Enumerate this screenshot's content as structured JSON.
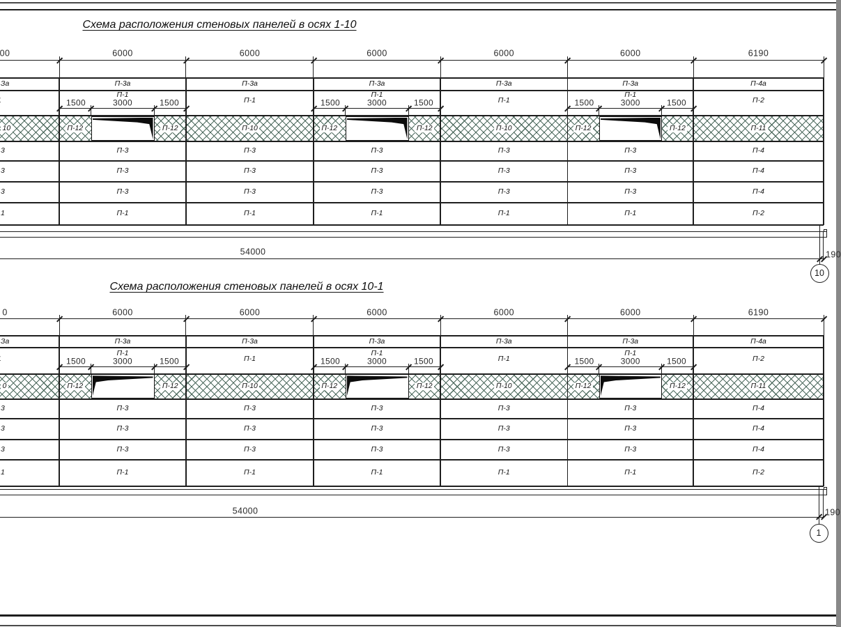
{
  "sheet": {
    "background": "#ffffff",
    "line_color": "#1e1e1e",
    "hatch_color": "#4d6a5e"
  },
  "diagrams": [
    {
      "title": "Схема расположения стеновых панелей в осях 1-10",
      "axis_label": "10",
      "top_dims": [
        "00",
        "6000",
        "6000",
        "6000",
        "6000",
        "6000",
        "6190"
      ],
      "window_dims": {
        "side": "1500",
        "mid": "3000",
        "lintel": "П-1"
      },
      "window_flag": "right",
      "rows": [
        {
          "type": "plain",
          "cells": [
            "За",
            "П-3а",
            "П-3а",
            "П-3а",
            "П-3а",
            "П-3а",
            "П-4а"
          ]
        },
        {
          "type": "lintel",
          "cells": [
            "1",
            "П-1",
            "П-1",
            "П-1",
            "П-1",
            "П-1",
            "П-2"
          ]
        },
        {
          "type": "hatch",
          "cells": [
            "10",
            "П-12",
            "П-10",
            "П-12",
            "П-10",
            "П-12",
            "П-11"
          ]
        },
        {
          "type": "plain",
          "cells": [
            "3",
            "П-3",
            "П-3",
            "П-3",
            "П-3",
            "П-3",
            "П-4"
          ]
        },
        {
          "type": "plain",
          "cells": [
            "3",
            "П-3",
            "П-3",
            "П-3",
            "П-3",
            "П-3",
            "П-4"
          ]
        },
        {
          "type": "plain",
          "cells": [
            "3",
            "П-3",
            "П-3",
            "П-3",
            "П-3",
            "П-3",
            "П-4"
          ]
        },
        {
          "type": "plain",
          "cells": [
            "1",
            "П-1",
            "П-1",
            "П-1",
            "П-1",
            "П-1",
            "П-2"
          ]
        }
      ],
      "total_dim": "54000",
      "edge_dim": "190"
    },
    {
      "title": "Схема расположения стеновых панелей в осях 10-1",
      "axis_label": "1",
      "top_dims": [
        "0",
        "6000",
        "6000",
        "6000",
        "6000",
        "6000",
        "6190"
      ],
      "window_dims": {
        "side": "1500",
        "mid": "3000",
        "lintel": "П-1"
      },
      "window_flag": "left",
      "rows": [
        {
          "type": "plain",
          "cells": [
            "За",
            "П-3а",
            "П-3а",
            "П-3а",
            "П-3а",
            "П-3а",
            "П-4а"
          ]
        },
        {
          "type": "lintel",
          "cells": [
            "1",
            "П-1",
            "П-1",
            "П-1",
            "П-1",
            "П-1",
            "П-2"
          ]
        },
        {
          "type": "hatch",
          "cells": [
            "0",
            "П-12",
            "П-10",
            "П-12",
            "П-10",
            "П-12",
            "П-11"
          ]
        },
        {
          "type": "plain",
          "cells": [
            "3",
            "П-3",
            "П-3",
            "П-3",
            "П-3",
            "П-3",
            "П-4"
          ]
        },
        {
          "type": "plain",
          "cells": [
            "3",
            "П-3",
            "П-3",
            "П-3",
            "П-3",
            "П-3",
            "П-4"
          ]
        },
        {
          "type": "plain",
          "cells": [
            "3",
            "П-3",
            "П-3",
            "П-3",
            "П-3",
            "П-3",
            "П-4"
          ]
        },
        {
          "type": "plain",
          "cells": [
            "1",
            "П-1",
            "П-1",
            "П-1",
            "П-1",
            "П-1",
            "П-2"
          ]
        }
      ],
      "total_dim": "54000",
      "edge_dim": "190"
    }
  ]
}
